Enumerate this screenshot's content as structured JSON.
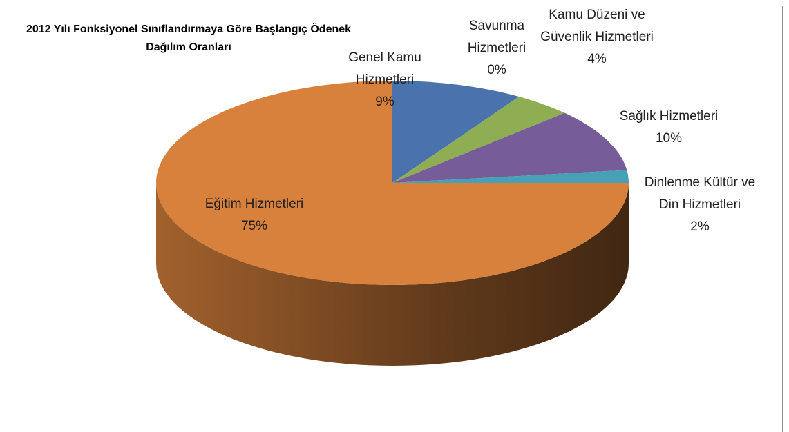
{
  "chart_data": {
    "type": "pie3d",
    "title": "2012 Yılı Fonksiyonel Sınıflandırmaya Göre Başlangıç Ödenek Dağılım Oranları",
    "categories": [
      "Genel Kamu Hizmetleri",
      "Savunma Hizmetleri",
      "Kamu Düzeni ve Güvenlik Hizmetleri",
      "Sağlık Hizmetleri",
      "Dinlenme Kültür ve Din Hizmetleri",
      "Eğitim Hizmetleri"
    ],
    "values": [
      9,
      0,
      4,
      10,
      2,
      75
    ],
    "value_labels": [
      "9%",
      "0%",
      "4%",
      "10%",
      "2%",
      "75%"
    ],
    "colors": [
      "#4a72ac",
      "#b84c48",
      "#8fad52",
      "#765c98",
      "#45a0b8",
      "#d8813c"
    ]
  }
}
